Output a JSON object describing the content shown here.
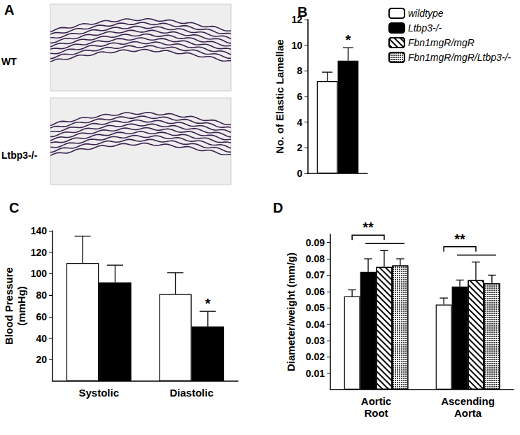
{
  "image_panel": {
    "label": "A",
    "rows": [
      "WT",
      "Ltbp3-/-"
    ]
  },
  "chart_data": [
    {
      "type": "bar",
      "title": "B",
      "categories": [
        null
      ],
      "ylabel": "No. of Elastic Lamellae",
      "ylim": [
        0,
        12
      ],
      "yticks": [
        0,
        2,
        4,
        6,
        8,
        10,
        12
      ],
      "series": [
        {
          "name": "wildtype",
          "color": "#ffffff",
          "values": [
            7.2
          ],
          "errors": [
            0.7
          ]
        },
        {
          "name": "Ltbp3-/-",
          "color": "#000000",
          "values": [
            8.8
          ],
          "errors": [
            1.0
          ]
        }
      ],
      "annotations": [
        {
          "text": "*",
          "category": null,
          "series": "Ltbp3-/-"
        }
      ]
    },
    {
      "type": "bar",
      "title": "C",
      "categories": [
        "Systolic",
        "Diastolic"
      ],
      "ylabel": "Blood Pressure\n(mmHg)",
      "ylim": [
        0,
        140
      ],
      "yticks": [
        20,
        40,
        60,
        80,
        100,
        120,
        140
      ],
      "series": [
        {
          "name": "wildtype",
          "color": "#ffffff",
          "values": [
            110,
            81
          ],
          "errors": [
            25,
            20
          ]
        },
        {
          "name": "Ltbp3-/-",
          "color": "#000000",
          "values": [
            92,
            51
          ],
          "errors": [
            16,
            14
          ]
        }
      ],
      "annotations": [
        {
          "text": "*",
          "category": "Diastolic",
          "series": "Ltbp3-/-"
        }
      ]
    },
    {
      "type": "bar",
      "title": "D",
      "categories": [
        "Aortic\nRoot",
        "Ascending\nAorta"
      ],
      "ylabel": "Diameter/weight (mm/g)",
      "ylim": [
        0,
        0.095
      ],
      "yticks": [
        0.01,
        0.02,
        0.03,
        0.04,
        0.05,
        0.06,
        0.07,
        0.08,
        0.09
      ],
      "legend": "top-right",
      "series": [
        {
          "name": "wildtype",
          "color": "#ffffff",
          "values": [
            0.057,
            0.052
          ],
          "errors": [
            0.004,
            0.004
          ]
        },
        {
          "name": "Ltbp3-/-",
          "color": "#000000",
          "values": [
            0.072,
            0.063
          ],
          "errors": [
            0.008,
            0.004
          ]
        },
        {
          "name": "Fbn1mgR/mgR",
          "color": "#ffffff",
          "marker": "hatched",
          "values": [
            0.075,
            0.067
          ],
          "errors": [
            0.01,
            0.011
          ]
        },
        {
          "name": "Fbn1mgR/mgR/Ltbp3-/-",
          "color": "#ffffff",
          "marker": "dotted",
          "values": [
            0.076,
            0.065
          ],
          "errors": [
            0.004,
            0.005
          ]
        }
      ],
      "annotations": [
        {
          "text": "**",
          "category": "Aortic\nRoot"
        },
        {
          "text": "**",
          "category": "Ascending\nAorta"
        }
      ]
    }
  ]
}
